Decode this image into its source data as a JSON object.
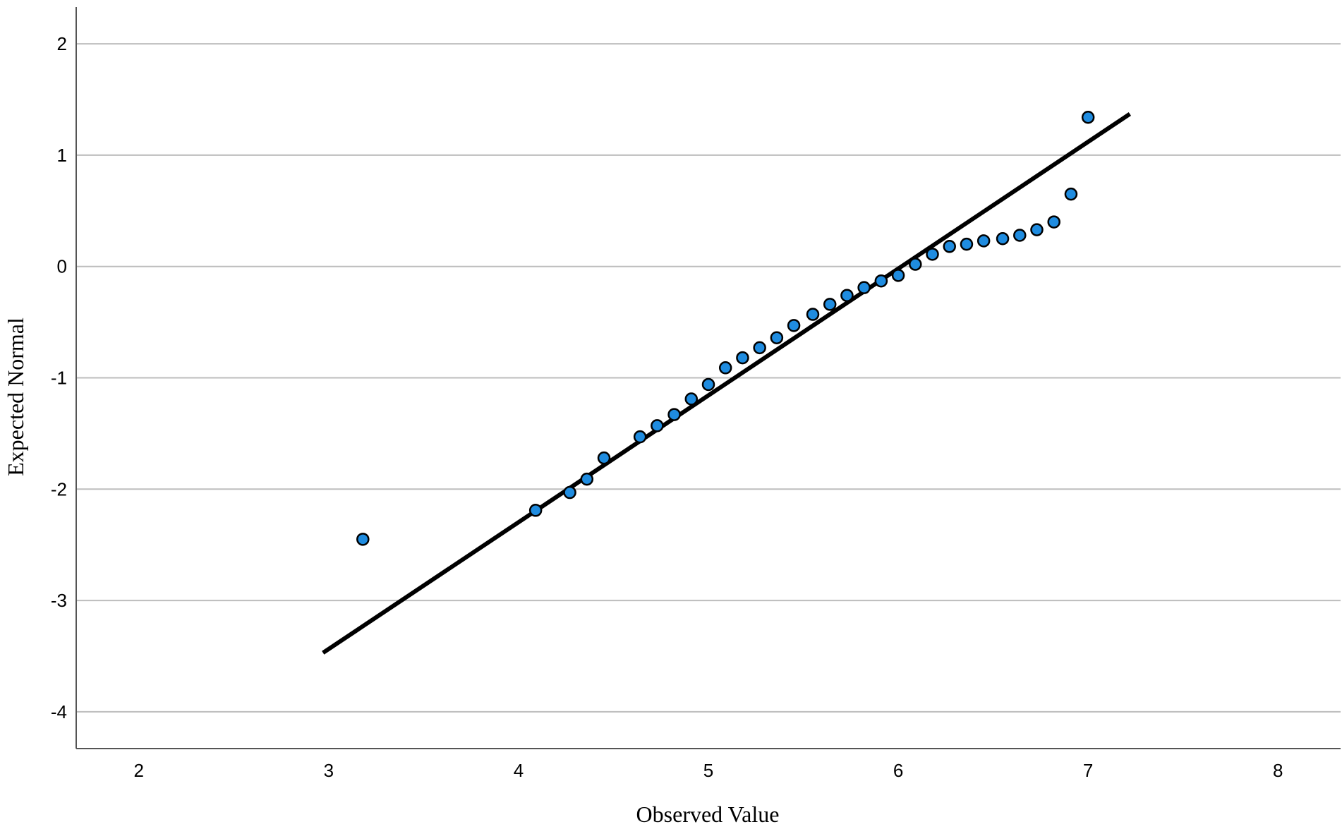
{
  "chart_data": {
    "type": "scatter",
    "xlabel": "Observed Value",
    "ylabel": "Expected Normal",
    "xlim": [
      1.67,
      8.33
    ],
    "ylim": [
      -4.33,
      2.33
    ],
    "xticks": [
      2,
      3,
      4,
      5,
      6,
      7,
      8
    ],
    "yticks": [
      2,
      1,
      0,
      -1,
      -2,
      -3,
      -4
    ],
    "grid": "horizontal",
    "points": {
      "x": [
        3.18,
        4.09,
        4.27,
        4.36,
        4.45,
        4.64,
        4.73,
        4.82,
        4.91,
        5.0,
        5.09,
        5.18,
        5.27,
        5.36,
        5.45,
        5.55,
        5.64,
        5.73,
        5.82,
        5.91,
        6.0,
        6.09,
        6.18,
        6.27,
        6.36,
        6.45,
        6.55,
        6.64,
        6.73,
        6.82,
        6.91,
        7.0
      ],
      "y": [
        -2.45,
        -2.19,
        -2.03,
        -1.91,
        -1.72,
        -1.53,
        -1.43,
        -1.33,
        -1.19,
        -1.06,
        -0.91,
        -0.82,
        -0.73,
        -0.64,
        -0.53,
        -0.43,
        -0.34,
        -0.26,
        -0.19,
        -0.13,
        -0.08,
        0.02,
        0.11,
        0.18,
        0.2,
        0.23,
        0.25,
        0.28,
        0.33,
        0.4,
        0.65,
        1.34
      ]
    },
    "reference_line": {
      "x": [
        2.97,
        7.22
      ],
      "y": [
        -3.47,
        1.37
      ]
    },
    "colors": {
      "point_fill": "#1f8ce0",
      "point_stroke": "#000000",
      "line": "#000000",
      "grid": "#bdbdbd"
    }
  }
}
